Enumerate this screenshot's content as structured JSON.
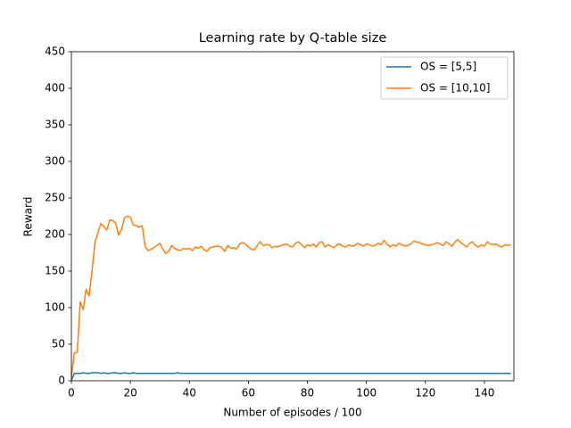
{
  "chart_data": {
    "type": "line",
    "title": "Learning rate by Q-table size",
    "x_label": "Number of episodes / 100",
    "y_label": "Reward",
    "x": [
      0,
      1,
      2,
      3,
      4,
      5,
      6,
      7,
      8,
      9,
      10,
      11,
      12,
      13,
      14,
      15,
      16,
      17,
      18,
      19,
      20,
      21,
      22,
      23,
      24,
      25,
      26,
      27,
      28,
      29,
      30,
      31,
      32,
      33,
      34,
      35,
      36,
      37,
      38,
      39,
      40,
      41,
      42,
      43,
      44,
      45,
      46,
      47,
      48,
      49,
      50,
      51,
      52,
      53,
      54,
      55,
      56,
      57,
      58,
      59,
      60,
      61,
      62,
      63,
      64,
      65,
      66,
      67,
      68,
      69,
      70,
      71,
      72,
      73,
      74,
      75,
      76,
      77,
      78,
      79,
      80,
      81,
      82,
      83,
      84,
      85,
      86,
      87,
      88,
      89,
      90,
      91,
      92,
      93,
      94,
      95,
      96,
      97,
      98,
      99,
      100,
      101,
      102,
      103,
      104,
      105,
      106,
      107,
      108,
      109,
      110,
      111,
      112,
      113,
      114,
      115,
      116,
      117,
      118,
      119,
      120,
      121,
      122,
      123,
      124,
      125,
      126,
      127,
      128,
      129,
      130,
      131,
      132,
      133,
      134,
      135,
      136,
      137,
      138,
      139,
      140,
      141,
      142,
      143,
      144,
      145,
      146,
      147,
      148,
      149
    ],
    "series": [
      {
        "name": "OS = [5,5]",
        "color": "#1f77b4",
        "values": [
          0,
          10,
          10,
          10,
          11,
          10,
          10,
          11,
          11,
          11,
          10,
          11,
          10,
          10,
          11,
          11,
          10,
          10,
          11,
          10,
          10,
          11,
          10,
          10,
          10,
          10,
          10,
          10,
          10,
          10,
          10,
          10,
          10,
          10,
          10,
          10,
          11,
          10,
          10,
          10,
          10,
          10,
          10,
          10,
          10,
          10,
          10,
          10,
          10,
          10,
          10,
          10,
          10,
          10,
          10,
          10,
          10,
          10,
          10,
          10,
          10,
          10,
          10,
          10,
          10,
          10,
          10,
          10,
          10,
          10,
          10,
          10,
          10,
          10,
          10,
          10,
          10,
          10,
          10,
          10,
          10,
          10,
          10,
          10,
          10,
          10,
          10,
          10,
          10,
          10,
          10,
          10,
          10,
          10,
          10,
          10,
          10,
          10,
          10,
          10,
          10,
          10,
          10,
          10,
          10,
          10,
          10,
          10,
          10,
          10,
          10,
          10,
          10,
          10,
          10,
          10,
          10,
          10,
          10,
          10,
          10,
          10,
          10,
          10,
          10,
          10,
          10,
          10,
          10,
          10,
          10,
          10,
          10,
          10,
          10,
          10,
          10,
          10,
          10,
          10,
          10,
          10,
          10,
          10,
          10,
          10,
          10,
          10,
          10,
          10
        ]
      },
      {
        "name": "OS = [10,10]",
        "color": "#ff7f0e",
        "values": [
          5,
          38,
          39,
          108,
          97,
          125,
          116,
          150,
          190,
          202,
          215,
          211,
          206,
          220,
          219,
          216,
          199,
          207,
          223,
          225,
          224,
          213,
          212,
          210,
          212,
          184,
          178,
          180,
          182,
          185,
          188,
          180,
          174,
          177,
          185,
          181,
          179,
          178,
          181,
          180,
          181,
          178,
          183,
          181,
          184,
          179,
          177,
          182,
          183,
          184,
          184,
          182,
          177,
          185,
          181,
          182,
          180,
          187,
          189,
          187,
          183,
          180,
          179,
          185,
          190,
          185,
          186,
          186,
          182,
          184,
          183,
          185,
          186,
          187,
          184,
          183,
          188,
          190,
          186,
          182,
          186,
          184,
          187,
          183,
          189,
          190,
          183,
          186,
          184,
          182,
          186,
          187,
          184,
          183,
          186,
          184,
          185,
          188,
          186,
          184,
          187,
          186,
          184,
          185,
          188,
          186,
          192,
          187,
          183,
          186,
          184,
          188,
          186,
          184,
          185,
          187,
          191,
          190,
          189,
          187,
          186,
          185,
          186,
          187,
          189,
          187,
          185,
          190,
          187,
          184,
          190,
          193,
          189,
          186,
          183,
          188,
          190,
          185,
          183,
          186,
          184,
          190,
          187,
          186,
          187,
          184,
          183,
          186,
          185,
          186
        ]
      }
    ],
    "xlim": [
      0,
      150
    ],
    "xticks": [
      0,
      20,
      40,
      60,
      80,
      100,
      120,
      140
    ],
    "ylim": [
      0,
      450
    ],
    "yticks": [
      0,
      50,
      100,
      150,
      200,
      250,
      300,
      350,
      400,
      450
    ],
    "grid": false,
    "legend": "upper-right"
  }
}
